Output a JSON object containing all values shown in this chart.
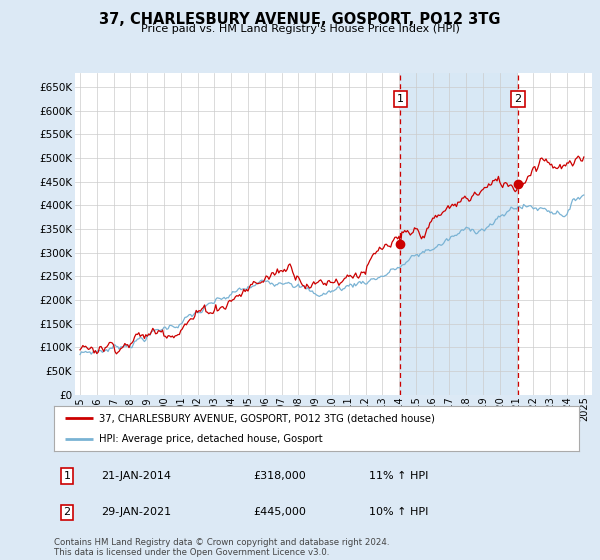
{
  "title": "37, CHARLESBURY AVENUE, GOSPORT, PO12 3TG",
  "subtitle": "Price paid vs. HM Land Registry's House Price Index (HPI)",
  "legend_line1": "37, CHARLESBURY AVENUE, GOSPORT, PO12 3TG (detached house)",
  "legend_line2": "HPI: Average price, detached house, Gosport",
  "annotation1_date": "21-JAN-2014",
  "annotation1_price": "£318,000",
  "annotation1_hpi": "11% ↑ HPI",
  "annotation1_year": 2014.08,
  "annotation1_value": 318000,
  "annotation2_date": "29-JAN-2021",
  "annotation2_price": "£445,000",
  "annotation2_hpi": "10% ↑ HPI",
  "annotation2_year": 2021.08,
  "annotation2_value": 445000,
  "footer": "Contains HM Land Registry data © Crown copyright and database right 2024.\nThis data is licensed under the Open Government Licence v3.0.",
  "hpi_color": "#7ab3d4",
  "price_color": "#cc0000",
  "shade_color": "#d8e8f5",
  "background_color": "#dce9f5",
  "plot_bg": "#ffffff",
  "ylim": [
    0,
    680000
  ],
  "yticks": [
    0,
    50000,
    100000,
    150000,
    200000,
    250000,
    300000,
    350000,
    400000,
    450000,
    500000,
    550000,
    600000,
    650000
  ],
  "xlim_start": 1994.7,
  "xlim_end": 2025.5,
  "xticks": [
    1995,
    1996,
    1997,
    1998,
    1999,
    2000,
    2001,
    2002,
    2003,
    2004,
    2005,
    2006,
    2007,
    2008,
    2009,
    2010,
    2011,
    2012,
    2013,
    2014,
    2015,
    2016,
    2017,
    2018,
    2019,
    2020,
    2021,
    2022,
    2023,
    2024,
    2025
  ]
}
